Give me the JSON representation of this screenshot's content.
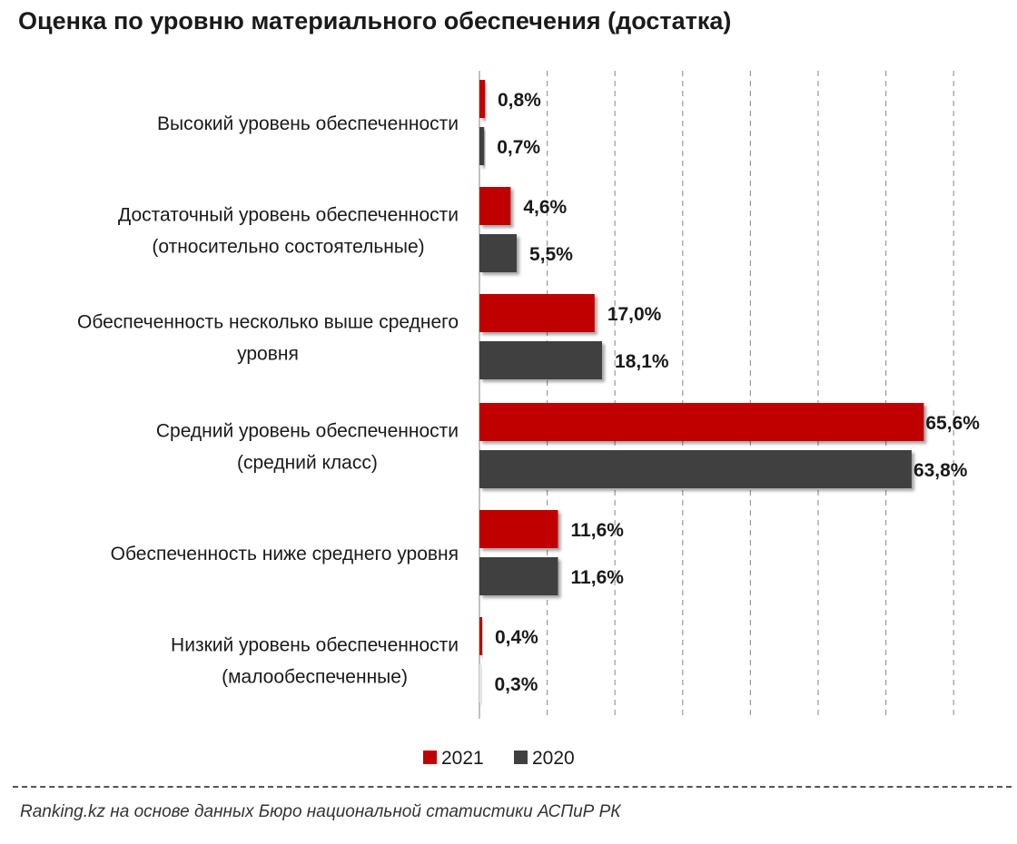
{
  "title": "Оценка по уровню материального обеспечения (достатка)",
  "source": "Ranking.kz на основе данных  Бюро  национальной  статистики АСПиР РК",
  "colors": {
    "2021": "#c00000",
    "2020": "#404040"
  },
  "chart_data": {
    "type": "bar",
    "orientation": "horizontal",
    "title": "Оценка по уровню материального обеспечения (достатка)",
    "categories": [
      [
        "Высокий уровень обеспеченности"
      ],
      [
        "Достаточный уровень обеспеченности",
        "(относительно состоятельные)"
      ],
      [
        "Обеспеченность несколько выше среднего",
        "уровня"
      ],
      [
        "Средний уровень обеспеченности",
        "(средний класс)"
      ],
      [
        "Обеспеченность ниже среднего уровня"
      ],
      [
        "Низкий уровень обеспеченности",
        "(малообеспеченные)"
      ]
    ],
    "series": [
      {
        "name": "2021",
        "values": [
          0.8,
          4.6,
          17.0,
          65.6,
          11.6,
          0.4
        ],
        "labels": [
          "0,8%",
          "4,6%",
          "17,0%",
          "65,6%",
          "11,6%",
          "0,4%"
        ]
      },
      {
        "name": "2020",
        "values": [
          0.7,
          5.5,
          18.1,
          63.8,
          11.6,
          0.3
        ],
        "labels": [
          "0,7%",
          "5,5%",
          "18,1%",
          "63,8%",
          "11,6%",
          "0,3%"
        ]
      }
    ],
    "xlim": [
      0,
      80
    ],
    "grid": true,
    "legend": "bottom"
  }
}
